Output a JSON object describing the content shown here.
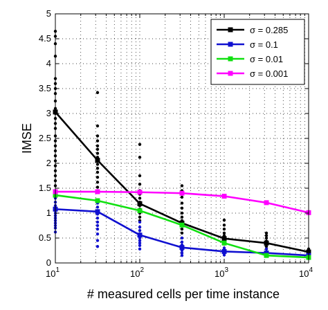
{
  "chart_data": {
    "type": "line",
    "xlabel": "# measured cells per time instance",
    "ylabel": "IMSE",
    "xscale": "log",
    "xlim": [
      10,
      10000
    ],
    "ylim": [
      0,
      5
    ],
    "grid": true,
    "legend_position": "top-right",
    "x_ticks": [
      {
        "value": 10,
        "base": "10",
        "exp": "1"
      },
      {
        "value": 100,
        "base": "10",
        "exp": "2"
      },
      {
        "value": 1000,
        "base": "10",
        "exp": "3"
      },
      {
        "value": 10000,
        "base": "10",
        "exp": "4"
      }
    ],
    "y_ticks": [
      {
        "value": 0,
        "label": "0"
      },
      {
        "value": 0.5,
        "label": "0.5"
      },
      {
        "value": 1,
        "label": "1"
      },
      {
        "value": 1.5,
        "label": "1.5"
      },
      {
        "value": 2,
        "label": "2"
      },
      {
        "value": 2.5,
        "label": "2.5"
      },
      {
        "value": 3,
        "label": "3"
      },
      {
        "value": 3.5,
        "label": "3.5"
      },
      {
        "value": 4,
        "label": "4"
      },
      {
        "value": 4.5,
        "label": "4.5"
      },
      {
        "value": 5,
        "label": "5"
      }
    ],
    "x": [
      10,
      31.6,
      100,
      316,
      1000,
      3162,
      10000
    ],
    "series": [
      {
        "name": "σ = 0.285",
        "color": "#000000",
        "values": [
          3.03,
          2.06,
          1.19,
          0.8,
          0.49,
          0.4,
          0.22
        ]
      },
      {
        "name": "σ = 0.1",
        "color": "#1010d0",
        "values": [
          1.08,
          1.03,
          0.56,
          0.31,
          0.23,
          0.2,
          0.15
        ]
      },
      {
        "name": "σ = 0.01",
        "color": "#10e010",
        "values": [
          1.36,
          1.25,
          1.05,
          0.76,
          0.4,
          0.15,
          0.11
        ]
      },
      {
        "name": "σ = 0.001",
        "color": "#ff00ff",
        "values": [
          1.43,
          1.43,
          1.42,
          1.4,
          1.34,
          1.21,
          1.01
        ]
      }
    ],
    "scatter": [
      {
        "color": "#000000",
        "points": [
          [
            10,
            4.65
          ],
          [
            10,
            4.55
          ],
          [
            10,
            4.4
          ],
          [
            10,
            4.15
          ],
          [
            10,
            3.7
          ],
          [
            10,
            3.6
          ],
          [
            10,
            3.5
          ],
          [
            10,
            3.4
          ],
          [
            10,
            3.25
          ],
          [
            10,
            3.1
          ],
          [
            10,
            3.0
          ],
          [
            10,
            2.9
          ],
          [
            10,
            2.8
          ],
          [
            10,
            2.7
          ],
          [
            10,
            2.55
          ],
          [
            10,
            2.45
          ],
          [
            10,
            2.35
          ],
          [
            10,
            2.25
          ],
          [
            10,
            2.15
          ],
          [
            10,
            2.05
          ],
          [
            10,
            1.95
          ],
          [
            10,
            1.85
          ],
          [
            10,
            1.75
          ],
          [
            10,
            1.65
          ],
          [
            10,
            1.55
          ],
          [
            10,
            1.45
          ],
          [
            10,
            1.35
          ],
          [
            31.6,
            3.42
          ],
          [
            31.6,
            2.75
          ],
          [
            31.6,
            2.55
          ],
          [
            31.6,
            2.45
          ],
          [
            31.6,
            2.35
          ],
          [
            31.6,
            2.28
          ],
          [
            31.6,
            2.2
          ],
          [
            31.6,
            2.12
          ],
          [
            31.6,
            2.05
          ],
          [
            31.6,
            1.98
          ],
          [
            31.6,
            1.9
          ],
          [
            31.6,
            1.82
          ],
          [
            31.6,
            1.72
          ],
          [
            31.6,
            1.62
          ],
          [
            31.6,
            1.52
          ],
          [
            31.6,
            1.45
          ],
          [
            100,
            2.38
          ],
          [
            100,
            2.12
          ],
          [
            100,
            1.75
          ],
          [
            100,
            1.58
          ],
          [
            100,
            1.45
          ],
          [
            100,
            1.38
          ],
          [
            100,
            1.3
          ],
          [
            100,
            1.22
          ],
          [
            100,
            1.15
          ],
          [
            100,
            1.08
          ],
          [
            100,
            1.0
          ],
          [
            100,
            0.92
          ],
          [
            100,
            0.85
          ],
          [
            316,
            1.55
          ],
          [
            316,
            1.45
          ],
          [
            316,
            1.32
          ],
          [
            316,
            1.2
          ],
          [
            316,
            1.1
          ],
          [
            316,
            1.0
          ],
          [
            316,
            0.92
          ],
          [
            316,
            0.85
          ],
          [
            316,
            0.75
          ],
          [
            316,
            0.68
          ],
          [
            316,
            0.6
          ],
          [
            1000,
            0.86
          ],
          [
            1000,
            0.76
          ],
          [
            1000,
            0.68
          ],
          [
            1000,
            0.6
          ],
          [
            1000,
            0.55
          ],
          [
            1000,
            0.5
          ],
          [
            1000,
            0.45
          ],
          [
            1000,
            0.4
          ],
          [
            3162,
            0.6
          ],
          [
            3162,
            0.55
          ],
          [
            3162,
            0.5
          ],
          [
            3162,
            0.44
          ],
          [
            3162,
            0.38
          ],
          [
            3162,
            0.33
          ],
          [
            3162,
            0.28
          ],
          [
            10000,
            0.28
          ],
          [
            10000,
            0.25
          ],
          [
            10000,
            0.22
          ],
          [
            10000,
            0.19
          ]
        ]
      },
      {
        "color": "#1010d0",
        "points": [
          [
            10,
            1.3
          ],
          [
            10,
            1.22
          ],
          [
            10,
            1.15
          ],
          [
            10,
            1.1
          ],
          [
            10,
            1.05
          ],
          [
            10,
            1.0
          ],
          [
            10,
            0.95
          ],
          [
            10,
            0.9
          ],
          [
            10,
            0.85
          ],
          [
            10,
            0.8
          ],
          [
            10,
            0.75
          ],
          [
            10,
            0.7
          ],
          [
            10,
            0.62
          ],
          [
            31.6,
            1.2
          ],
          [
            31.6,
            1.12
          ],
          [
            31.6,
            1.05
          ],
          [
            31.6,
            0.98
          ],
          [
            31.6,
            0.9
          ],
          [
            31.6,
            0.82
          ],
          [
            31.6,
            0.75
          ],
          [
            31.6,
            0.68
          ],
          [
            31.6,
            0.58
          ],
          [
            31.6,
            0.45
          ],
          [
            31.6,
            0.33
          ],
          [
            100,
            0.82
          ],
          [
            100,
            0.72
          ],
          [
            100,
            0.65
          ],
          [
            100,
            0.58
          ],
          [
            100,
            0.5
          ],
          [
            100,
            0.45
          ],
          [
            100,
            0.4
          ],
          [
            100,
            0.35
          ],
          [
            100,
            0.28
          ],
          [
            316,
            0.5
          ],
          [
            316,
            0.42
          ],
          [
            316,
            0.36
          ],
          [
            316,
            0.3
          ],
          [
            316,
            0.25
          ],
          [
            316,
            0.2
          ],
          [
            316,
            0.15
          ],
          [
            1000,
            0.3
          ],
          [
            1000,
            0.25
          ],
          [
            1000,
            0.2
          ],
          [
            1000,
            0.16
          ],
          [
            3162,
            0.28
          ],
          [
            3162,
            0.22
          ],
          [
            3162,
            0.17
          ],
          [
            10000,
            0.17
          ],
          [
            10000,
            0.13
          ]
        ]
      }
    ]
  }
}
